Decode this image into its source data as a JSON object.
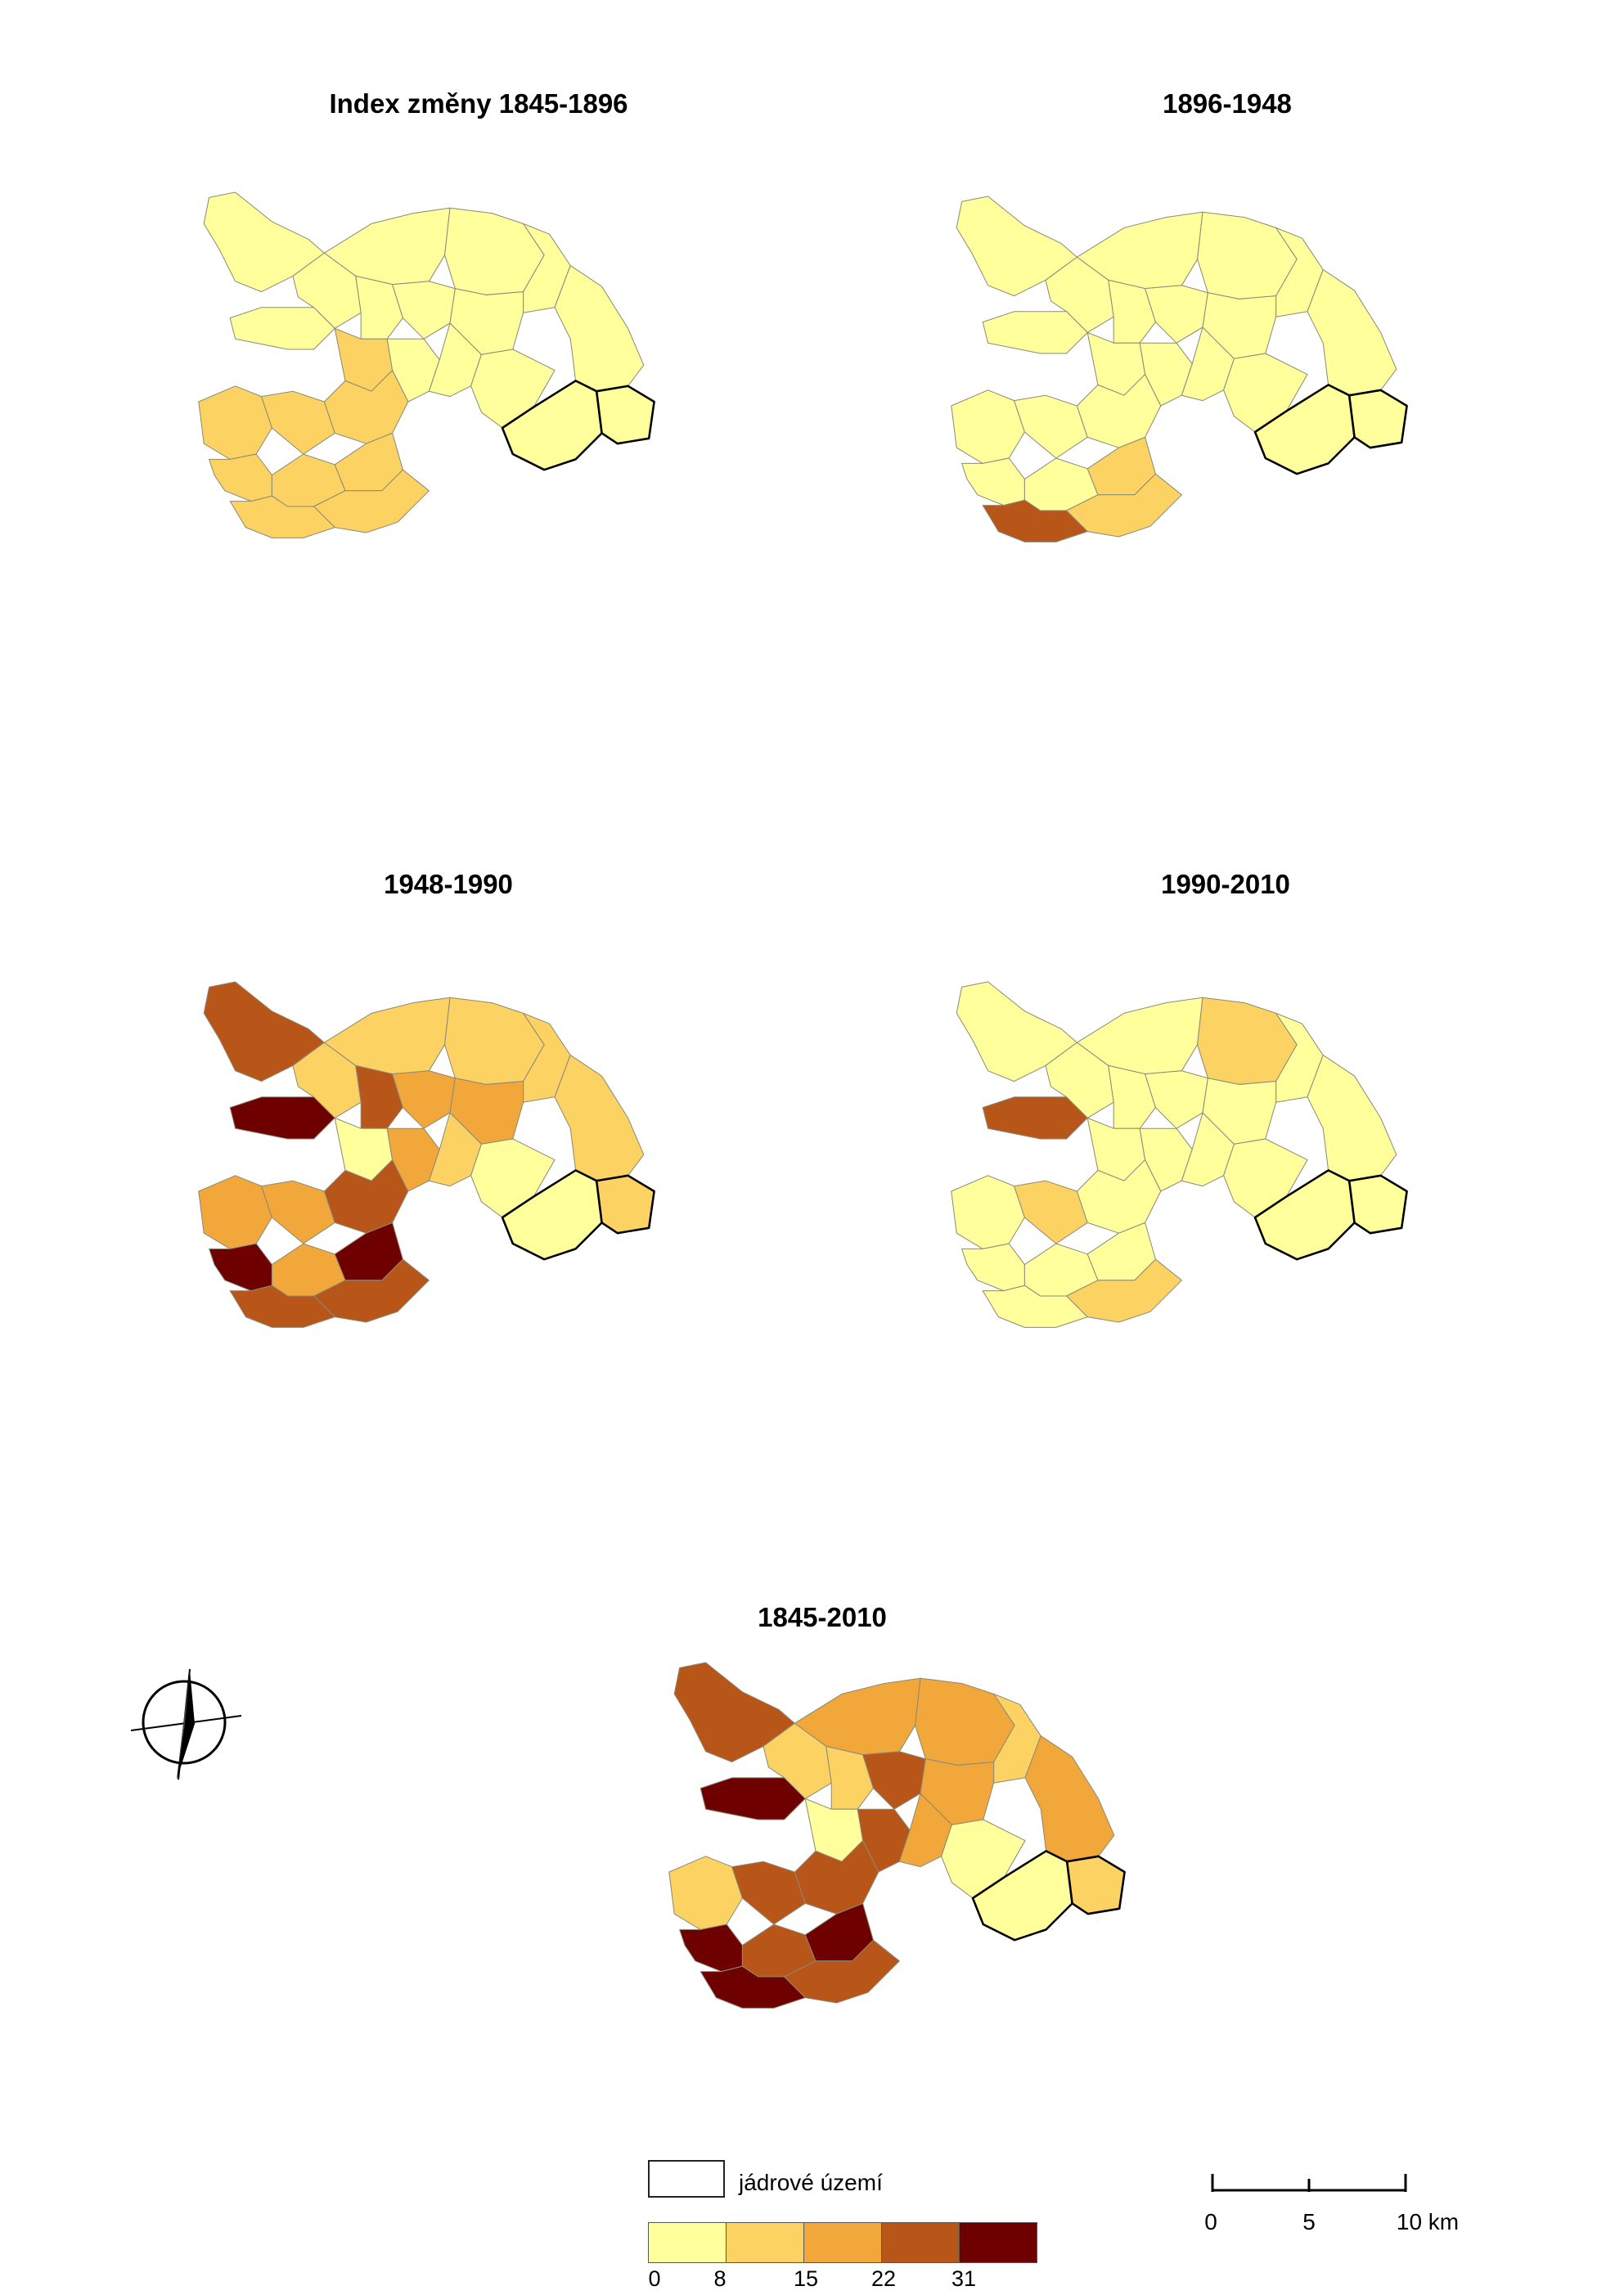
{
  "maps": [
    {
      "title": "Index změny 1845-1896",
      "cx": 0,
      "cy": 0,
      "classes": [
        "c0",
        "c0",
        "c0",
        "c0",
        "c0",
        "c0",
        "c0",
        "c0",
        "c0",
        "c0",
        "c1",
        "c0",
        "c0",
        "c0",
        "c1",
        "c1",
        "c1",
        "c1",
        "c1",
        "c1",
        "c1",
        "c1",
        "c0",
        "c0"
      ]
    },
    {
      "title": "1896-1948",
      "classes": [
        "c0",
        "c0",
        "c0",
        "c0",
        "c0",
        "c0",
        "c0",
        "c0",
        "c0",
        "c0",
        "c0",
        "c0",
        "c0",
        "c0",
        "c0",
        "c0",
        "c0",
        "c0",
        "c0",
        "c1",
        "c1",
        "c3",
        "c0",
        "c0"
      ]
    },
    {
      "title": "1948-1990",
      "classes": [
        "c3",
        "c1",
        "c1",
        "c1",
        "c1",
        "c1",
        "c3",
        "c2",
        "c2",
        "c4",
        "c0",
        "c2",
        "c1",
        "c0",
        "c2",
        "c2",
        "c3",
        "c4",
        "c2",
        "c4",
        "c3",
        "c3",
        "c0",
        "c1"
      ]
    },
    {
      "title": "1990-2010",
      "classes": [
        "c0",
        "c0",
        "c1",
        "c0",
        "c0",
        "c0",
        "c0",
        "c0",
        "c0",
        "c3",
        "c0",
        "c0",
        "c0",
        "c0",
        "c0",
        "c1",
        "c0",
        "c0",
        "c0",
        "c0",
        "c1",
        "c0",
        "c0",
        "c0"
      ]
    },
    {
      "title": "1845-2010",
      "classes": [
        "c3",
        "c2",
        "c2",
        "c1",
        "c2",
        "c1",
        "c1",
        "c3",
        "c2",
        "c4",
        "c0",
        "c3",
        "c2",
        "c0",
        "c1",
        "c3",
        "c3",
        "c4",
        "c3",
        "c4",
        "c3",
        "c4",
        "c0",
        "c1"
      ]
    }
  ],
  "legend": {
    "core_label": "jádrové území",
    "class_colors": [
      "#ffff9c",
      "#fcd262",
      "#f1a73a",
      "#b8561a",
      "#6e0000"
    ],
    "ticks": [
      "0",
      "8",
      "15",
      "22",
      "31"
    ]
  },
  "scale": {
    "labels": [
      "0",
      "5",
      "10 km"
    ]
  },
  "icons": {
    "north": "north-arrow-icon"
  }
}
